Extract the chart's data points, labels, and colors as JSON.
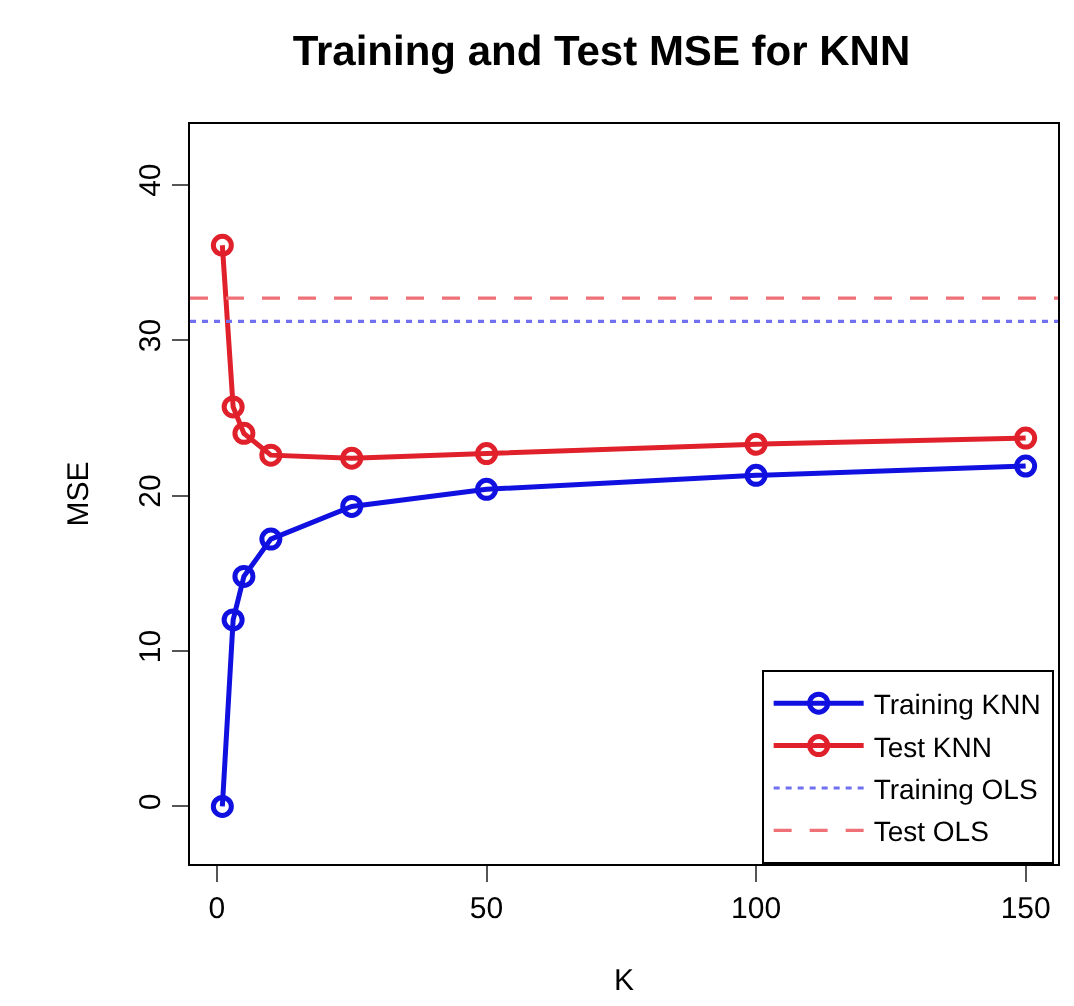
{
  "chart_data": {
    "type": "line",
    "title": "Training and Test MSE for KNN",
    "xlabel": "K",
    "ylabel": "MSE",
    "x": [
      1,
      3,
      5,
      10,
      25,
      50,
      100,
      150
    ],
    "series": [
      {
        "name": "Training KNN",
        "color": "#1010e0",
        "values": [
          0.0,
          12.0,
          14.8,
          17.2,
          19.3,
          20.4,
          21.3,
          21.9
        ]
      },
      {
        "name": "Test KNN",
        "color": "#e0202a",
        "values": [
          36.1,
          25.7,
          24.0,
          22.6,
          22.4,
          22.7,
          23.3,
          23.7
        ]
      }
    ],
    "ref_lines": [
      {
        "axis": "y",
        "value": 31.2,
        "label": "Training OLS",
        "color": "#7070f0",
        "line_style": "dotted"
      },
      {
        "axis": "y",
        "value": 32.7,
        "label": "Test OLS",
        "color": "#f07078",
        "line_style": "dashed"
      }
    ],
    "xlim": [
      -5,
      156
    ],
    "xticks": [
      0,
      50,
      100,
      150
    ],
    "ylim": [
      -3.7,
      43.9
    ],
    "yticks": [
      0,
      10,
      20,
      30,
      40
    ],
    "marker": "circle",
    "line_style": "solid",
    "legend": "bottom right"
  }
}
